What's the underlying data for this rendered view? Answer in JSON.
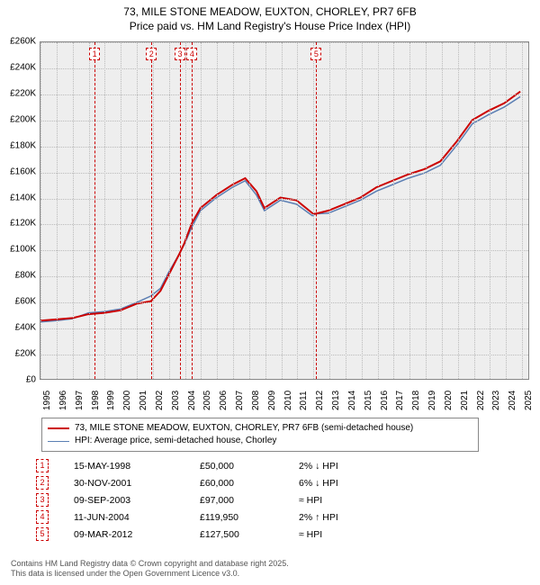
{
  "title": {
    "line1": "73, MILE STONE MEADOW, EUXTON, CHORLEY, PR7 6FB",
    "line2": "Price paid vs. HM Land Registry's House Price Index (HPI)"
  },
  "chart": {
    "type": "line",
    "background_color": "#eeeeee",
    "grid_color": "#bbbbbb",
    "ylim": [
      0,
      260000
    ],
    "ytick_step": 20000,
    "y_ticks": [
      "£0",
      "£20K",
      "£40K",
      "£60K",
      "£80K",
      "£100K",
      "£120K",
      "£140K",
      "£160K",
      "£180K",
      "£200K",
      "£220K",
      "£240K",
      "£260K"
    ],
    "xlim": [
      1995,
      2025.5
    ],
    "x_ticks": [
      "1995",
      "1996",
      "1997",
      "1998",
      "1999",
      "2000",
      "2001",
      "2002",
      "2003",
      "2004",
      "2005",
      "2006",
      "2007",
      "2008",
      "2009",
      "2010",
      "2011",
      "2012",
      "2013",
      "2014",
      "2015",
      "2016",
      "2017",
      "2018",
      "2019",
      "2020",
      "2021",
      "2022",
      "2023",
      "2024",
      "2025"
    ],
    "series": [
      {
        "name": "price_paid",
        "color": "#cc0000",
        "width": 2,
        "points": [
          [
            1995,
            45000
          ],
          [
            1996,
            46000
          ],
          [
            1997,
            47000
          ],
          [
            1998,
            50000
          ],
          [
            1999,
            51000
          ],
          [
            2000,
            53000
          ],
          [
            2001,
            58000
          ],
          [
            2001.9,
            60000
          ],
          [
            2002.5,
            68000
          ],
          [
            2003,
            80000
          ],
          [
            2003.7,
            97000
          ],
          [
            2004,
            105000
          ],
          [
            2004.45,
            119950
          ],
          [
            2005,
            132000
          ],
          [
            2006,
            142000
          ],
          [
            2007,
            150000
          ],
          [
            2007.8,
            155000
          ],
          [
            2008.5,
            145000
          ],
          [
            2009,
            132000
          ],
          [
            2010,
            140000
          ],
          [
            2011,
            138000
          ],
          [
            2012,
            128000
          ],
          [
            2012.18,
            127500
          ],
          [
            2013,
            130000
          ],
          [
            2014,
            135000
          ],
          [
            2015,
            140000
          ],
          [
            2016,
            148000
          ],
          [
            2017,
            153000
          ],
          [
            2018,
            158000
          ],
          [
            2019,
            162000
          ],
          [
            2020,
            168000
          ],
          [
            2021,
            183000
          ],
          [
            2022,
            200000
          ],
          [
            2023,
            207000
          ],
          [
            2024,
            213000
          ],
          [
            2025,
            222000
          ]
        ]
      },
      {
        "name": "hpi",
        "color": "#5b7fb4",
        "width": 1.5,
        "points": [
          [
            1995,
            44000
          ],
          [
            1996,
            45000
          ],
          [
            1997,
            46500
          ],
          [
            1998,
            51000
          ],
          [
            1999,
            52000
          ],
          [
            2000,
            54000
          ],
          [
            2001,
            59000
          ],
          [
            2001.9,
            64000
          ],
          [
            2002.5,
            70000
          ],
          [
            2003,
            82000
          ],
          [
            2003.7,
            97000
          ],
          [
            2004,
            104000
          ],
          [
            2004.45,
            117000
          ],
          [
            2005,
            130000
          ],
          [
            2006,
            140000
          ],
          [
            2007,
            148000
          ],
          [
            2007.8,
            153000
          ],
          [
            2008.5,
            142000
          ],
          [
            2009,
            130000
          ],
          [
            2010,
            138000
          ],
          [
            2011,
            135000
          ],
          [
            2012,
            126000
          ],
          [
            2012.18,
            127500
          ],
          [
            2013,
            128000
          ],
          [
            2014,
            133000
          ],
          [
            2015,
            138000
          ],
          [
            2016,
            145000
          ],
          [
            2017,
            150000
          ],
          [
            2018,
            155000
          ],
          [
            2019,
            159000
          ],
          [
            2020,
            165000
          ],
          [
            2021,
            180000
          ],
          [
            2022,
            197000
          ],
          [
            2023,
            204000
          ],
          [
            2024,
            210000
          ],
          [
            2025,
            218000
          ]
        ]
      }
    ],
    "markers": [
      {
        "n": "1",
        "x": 1998.37
      },
      {
        "n": "2",
        "x": 2001.91
      },
      {
        "n": "3",
        "x": 2003.69
      },
      {
        "n": "4",
        "x": 2004.44
      },
      {
        "n": "5",
        "x": 2012.18
      }
    ]
  },
  "legend": {
    "items": [
      {
        "color": "#cc0000",
        "width": 2,
        "label": "73, MILE STONE MEADOW, EUXTON, CHORLEY, PR7 6FB (semi-detached house)"
      },
      {
        "color": "#5b7fb4",
        "width": 1.5,
        "label": "HPI: Average price, semi-detached house, Chorley"
      }
    ]
  },
  "sales": [
    {
      "n": "1",
      "date": "15-MAY-1998",
      "price": "£50,000",
      "delta": "2% ↓ HPI"
    },
    {
      "n": "2",
      "date": "30-NOV-2001",
      "price": "£60,000",
      "delta": "6% ↓ HPI"
    },
    {
      "n": "3",
      "date": "09-SEP-2003",
      "price": "£97,000",
      "delta": "≈ HPI"
    },
    {
      "n": "4",
      "date": "11-JUN-2004",
      "price": "£119,950",
      "delta": "2% ↑ HPI"
    },
    {
      "n": "5",
      "date": "09-MAR-2012",
      "price": "£127,500",
      "delta": "≈ HPI"
    }
  ],
  "footer": {
    "line1": "Contains HM Land Registry data © Crown copyright and database right 2025.",
    "line2": "This data is licensed under the Open Government Licence v3.0."
  }
}
